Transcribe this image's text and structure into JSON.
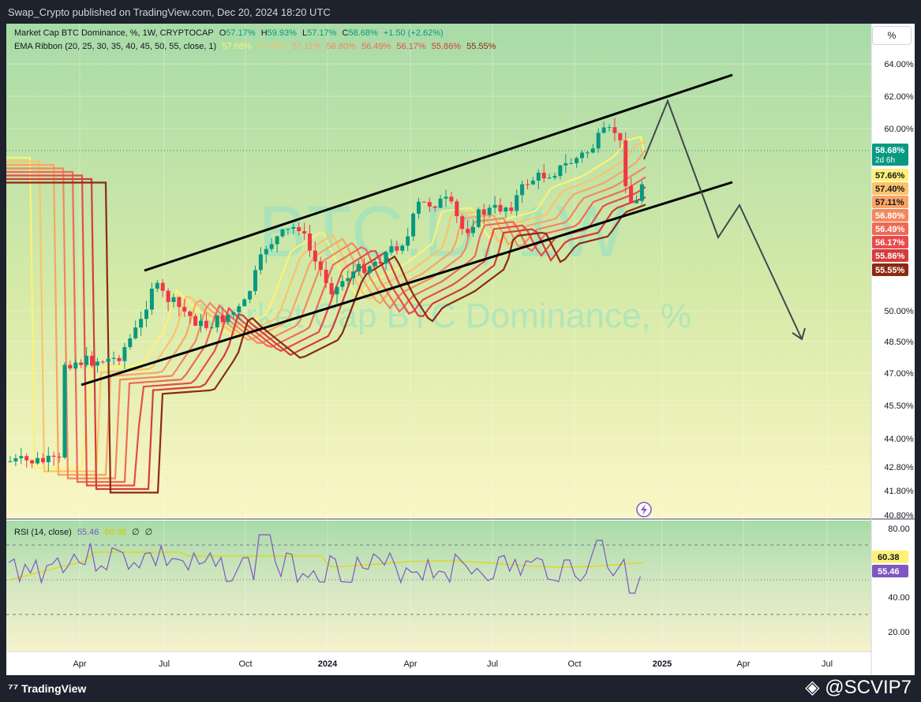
{
  "header": {
    "publisher": "Swap_Crypto published on TradingView.com, Dec 20, 2024 18:20 UTC"
  },
  "legend": {
    "title": "Market Cap BTC Dominance, %, 1W, CRYPTOCAP",
    "o_label": "O",
    "o_value": "57.17%",
    "h_label": "H",
    "h_value": "59.93%",
    "l_label": "L",
    "l_value": "57.17%",
    "c_label": "C",
    "c_value": "58.68%",
    "change": "+1.50 (+2.62%)",
    "ema_title": "EMA Ribbon (20, 25, 30, 35, 40, 45, 50, 55, close, 1)",
    "ema_values": [
      "57.66%",
      "57.40%",
      "57.11%",
      "56.80%",
      "56.49%",
      "56.17%",
      "55.86%",
      "55.55%"
    ],
    "rsi_title": "RSI (14, close)",
    "rsi_value": "55.46",
    "rsi_ma": "60.38",
    "rsi_x1": "∅",
    "rsi_x2": "∅"
  },
  "watermark": {
    "ticker": "BTC.D, 1W",
    "name": "Market Cap BTC Dominance, %"
  },
  "price_axis": {
    "ticks": [
      "64.00%",
      "62.00%",
      "60.00%",
      "50.00%",
      "48.50%",
      "47.00%",
      "45.50%",
      "44.00%",
      "42.80%",
      "41.80%",
      "40.80%"
    ]
  },
  "price_tags": [
    {
      "text": "58.68%",
      "sub": "2d 6h",
      "color": "#089981"
    },
    {
      "text": "57.66%",
      "color": "#fff176"
    },
    {
      "text": "57.40%",
      "color": "#fbc36a"
    },
    {
      "text": "57.11%",
      "color": "#f8a564"
    },
    {
      "text": "56.80%",
      "color": "#f4875d"
    },
    {
      "text": "56.49%",
      "color": "#ef6a55"
    },
    {
      "text": "56.17%",
      "color": "#e84b4b"
    },
    {
      "text": "55.86%",
      "color": "#d63b3b"
    },
    {
      "text": "55.55%",
      "color": "#8c2a14"
    }
  ],
  "rsi_axis": {
    "ticks": [
      "80.00",
      "40.00",
      "20.00"
    ]
  },
  "rsi_tags": [
    {
      "text": "60.38",
      "color": "#fff176"
    },
    {
      "text": "55.46",
      "color": "#7e57c2"
    }
  ],
  "time_axis": {
    "labels": [
      "Apr",
      "Jul",
      "Oct",
      "2024",
      "Apr",
      "Jul",
      "Oct",
      "2025",
      "Apr",
      "Jul"
    ]
  },
  "pct_button": "%",
  "footer": {
    "brand": "TradingView",
    "handle": "@SCVIP7"
  },
  "colors": {
    "up": "#089981",
    "down": "#f23645",
    "bg_top": "#a8dba8",
    "bg_bottom": "#fbf6c4"
  },
  "chart_data": {
    "type": "candlestick",
    "symbol": "Market Cap BTC Dominance, %",
    "timeframe": "1W",
    "ylim": [
      40.8,
      64.0
    ],
    "last": {
      "open": 57.17,
      "high": 59.93,
      "low": 57.17,
      "close": 58.68
    },
    "ema_ribbon": {
      "periods": [
        20,
        25,
        30,
        35,
        40,
        45,
        50,
        55
      ],
      "last_values": [
        57.66,
        57.4,
        57.11,
        56.8,
        56.49,
        56.17,
        55.86,
        55.55
      ]
    },
    "rsi": {
      "period": 14,
      "value": 55.46,
      "ma": 60.38,
      "levels": [
        70,
        50,
        30
      ],
      "ylim": [
        10,
        85
      ]
    }
  }
}
